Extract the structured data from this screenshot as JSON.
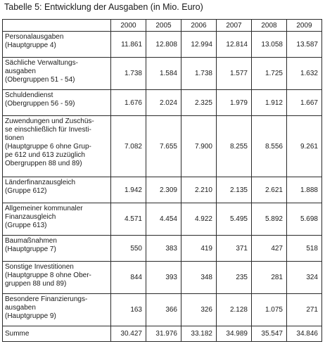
{
  "title": "Tabelle 5: Entwicklung der Ausgaben (in Mio. Euro)",
  "years": [
    "2000",
    "2005",
    "2006",
    "2007",
    "2008",
    "2009"
  ],
  "rows": [
    {
      "label": [
        "Personalausgaben",
        "(Hauptgruppe 4)"
      ],
      "values": [
        "11.861",
        "12.808",
        "12.994",
        "12.814",
        "13.058",
        "13.587"
      ]
    },
    {
      "label": [
        "Sächliche Verwaltungs-",
        "ausgaben",
        "(Obergruppen 51 - 54)"
      ],
      "values": [
        "1.738",
        "1.584",
        "1.738",
        "1.577",
        "1.725",
        "1.632"
      ]
    },
    {
      "label": [
        "Schuldendienst",
        "(Obergruppen 56 - 59)"
      ],
      "values": [
        "1.676",
        "2.024",
        "2.325",
        "1.979",
        "1.912",
        "1.667"
      ]
    },
    {
      "label": [
        "Zuwendungen und Zuschüs-",
        "se einschließlich für Investi-",
        "tionen",
        "(Hauptgruppe 6 ohne Grup-",
        "pe 612 und 613 zuzüglich",
        "Obergruppen 88 und 89)"
      ],
      "values": [
        "7.082",
        "7.655",
        "7.900",
        "8.255",
        "8.556",
        "9.261"
      ]
    },
    {
      "label": [
        "Länderfinanzausgleich",
        "(Gruppe 612)"
      ],
      "values": [
        "1.942",
        "2.309",
        "2.210",
        "2.135",
        "2.621",
        "1.888"
      ]
    },
    {
      "label": [
        "Allgemeiner kommunaler",
        "Finanzausgleich",
        "(Gruppe 613)"
      ],
      "values": [
        "4.571",
        "4.454",
        "4.922",
        "5.495",
        "5.892",
        "5.698"
      ]
    },
    {
      "label": [
        "Baumaßnahmen",
        "(Hauptgruppe 7)"
      ],
      "values": [
        "550",
        "383",
        "419",
        "371",
        "427",
        "518"
      ]
    },
    {
      "label": [
        "Sonstige Investitionen",
        "(Hauptgruppe 8 ohne Ober-",
        "gruppen 88 und 89)"
      ],
      "values": [
        "844",
        "393",
        "348",
        "235",
        "281",
        "324"
      ]
    },
    {
      "label": [
        "Besondere Finanzierungs-",
        "ausgaben",
        "(Hauptgruppe 9)"
      ],
      "values": [
        "163",
        "366",
        "326",
        "2.128",
        "1.075",
        "271"
      ]
    },
    {
      "label": [
        "Summe"
      ],
      "values": [
        "30.427",
        "31.976",
        "33.182",
        "34.989",
        "35.547",
        "34.846"
      ],
      "is_sum": true
    }
  ]
}
